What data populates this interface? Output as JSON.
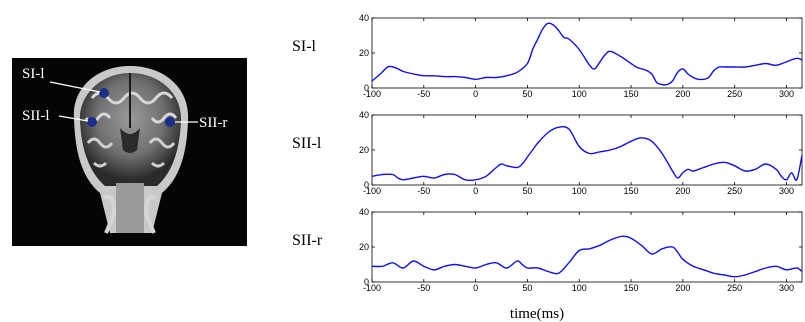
{
  "brain_image": {
    "labels": [
      "SI-l",
      "SII-l",
      "SII-r"
    ],
    "dot_color": "#1b2d8a"
  },
  "chart_data": [
    {
      "type": "line",
      "row_label": "SI-l",
      "x": [
        -100,
        -92,
        -85,
        -80,
        -75,
        -70,
        -60,
        -50,
        -40,
        -30,
        -20,
        -10,
        0,
        10,
        20,
        30,
        40,
        50,
        55,
        60,
        65,
        70,
        75,
        80,
        85,
        90,
        100,
        110,
        115,
        120,
        125,
        130,
        140,
        150,
        155,
        160,
        165,
        170,
        175,
        180,
        185,
        190,
        195,
        200,
        205,
        210,
        215,
        220,
        225,
        230,
        235,
        240,
        250,
        260,
        270,
        280,
        290,
        300,
        310,
        315
      ],
      "y": [
        4,
        8,
        12,
        12,
        11,
        9.5,
        8,
        7,
        7,
        6.5,
        6.5,
        6,
        5,
        6,
        6,
        7,
        9,
        14,
        22,
        28,
        34,
        37,
        36,
        33,
        29,
        28,
        22,
        13,
        11,
        15,
        19,
        21,
        18,
        14,
        12,
        11,
        10,
        8,
        3,
        2,
        2,
        4,
        9,
        11,
        8,
        6,
        5,
        5,
        6,
        10,
        12,
        12,
        12,
        12,
        13,
        14,
        13,
        15,
        17,
        16
      ],
      "color": "#1010e6",
      "xlim": [
        -100,
        315
      ],
      "ylim": [
        0,
        40
      ],
      "xticks": [
        -100,
        -50,
        0,
        50,
        100,
        150,
        200,
        250,
        300
      ],
      "yticks": [
        0,
        20,
        40
      ]
    },
    {
      "type": "line",
      "row_label": "SII-l",
      "x": [
        -100,
        -90,
        -80,
        -75,
        -70,
        -60,
        -50,
        -40,
        -30,
        -20,
        -10,
        0,
        10,
        20,
        25,
        30,
        40,
        45,
        50,
        55,
        60,
        70,
        80,
        90,
        100,
        110,
        120,
        130,
        140,
        150,
        160,
        170,
        180,
        190,
        195,
        200,
        205,
        210,
        220,
        230,
        240,
        250,
        260,
        270,
        280,
        290,
        295,
        300,
        305,
        310,
        315
      ],
      "y": [
        5,
        6,
        6,
        4,
        3,
        4,
        5,
        4,
        6,
        6,
        3,
        3,
        5,
        10,
        12,
        11,
        10,
        12,
        16,
        20,
        24,
        30,
        33,
        32,
        22,
        18,
        19,
        20,
        22,
        25,
        27,
        25,
        18,
        8,
        4,
        7,
        9,
        8,
        10,
        12,
        13,
        11,
        8,
        9,
        12,
        9,
        5,
        3,
        7,
        3,
        17
      ],
      "color": "#1010e6",
      "xlim": [
        -100,
        315
      ],
      "ylim": [
        0,
        40
      ],
      "xticks": [
        -100,
        -50,
        0,
        50,
        100,
        150,
        200,
        250,
        300
      ],
      "yticks": [
        0,
        20,
        40
      ]
    },
    {
      "type": "line",
      "row_label": "SII-r",
      "x": [
        -100,
        -90,
        -80,
        -70,
        -60,
        -50,
        -40,
        -30,
        -20,
        -10,
        0,
        10,
        20,
        30,
        40,
        45,
        50,
        60,
        70,
        80,
        90,
        100,
        110,
        120,
        130,
        140,
        145,
        150,
        160,
        170,
        180,
        190,
        195,
        200,
        210,
        220,
        230,
        240,
        250,
        260,
        270,
        280,
        290,
        300,
        310,
        315
      ],
      "y": [
        9,
        9,
        11,
        8,
        12,
        9,
        7,
        9,
        10,
        9,
        8,
        10,
        11,
        8,
        12,
        10,
        8,
        8,
        6,
        5,
        11,
        18,
        19,
        21,
        24,
        26,
        26,
        25,
        21,
        16,
        19,
        20,
        17,
        13,
        9,
        7,
        5,
        4,
        3,
        4,
        6,
        8,
        9,
        7,
        8,
        6
      ],
      "color": "#1010e6",
      "xlim": [
        -100,
        315
      ],
      "ylim": [
        0,
        40
      ],
      "xticks": [
        -100,
        -50,
        0,
        50,
        100,
        150,
        200,
        250,
        300
      ],
      "yticks": [
        0,
        20,
        40
      ],
      "xlabel": "time(ms)"
    }
  ]
}
